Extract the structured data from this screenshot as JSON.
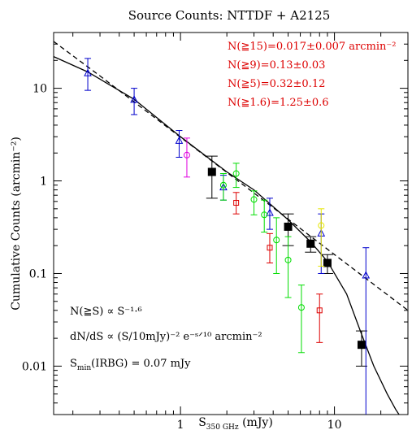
{
  "chart_data": {
    "type": "scatter",
    "title": "Source Counts: NTTDF + A2125",
    "xlabel_main": "S",
    "xlabel_sub": "350 GHz",
    "xlabel_unit": " (mJy)",
    "ylabel": "Cumulative Counts (arcmin⁻²)",
    "xscale": "log",
    "yscale": "log",
    "xlim": [
      0.15,
      30
    ],
    "ylim": [
      0.003,
      40
    ],
    "x_ticks": [
      {
        "value": 1,
        "label": "1"
      },
      {
        "value": 10,
        "label": "10"
      }
    ],
    "y_ticks": [
      {
        "value": 0.01,
        "label": "0.01"
      },
      {
        "value": 0.1,
        "label": "0.1"
      },
      {
        "value": 1,
        "label": "1"
      },
      {
        "value": 10,
        "label": "10"
      }
    ],
    "annotations_red": [
      "N(≧15)=0.017±0.007 arcmin⁻²",
      "N(≧9)=0.13±0.03",
      "N(≧5)=0.32±0.12",
      "N(≧1.6)=1.25±0.6"
    ],
    "annotations_black": [
      "N(≧S) ∝ S⁻¹·⁶",
      "dN/dS ∝ (S/10mJy)⁻² e⁻ˢᐟ¹⁰ arcmin⁻²",
      "S_min(IRBG) = 0.07 mJy"
    ],
    "smin_main": "S",
    "smin_sub": "min",
    "smin_rest": "(IRBG) = 0.07 mJy",
    "colors": {
      "black": "#000000",
      "blue": "#0000cc",
      "magenta": "#e000e0",
      "green": "#00dd00",
      "red": "#dd0000",
      "yellow": "#e6e600",
      "annotation": "#dd0000"
    },
    "series": [
      {
        "color": "black",
        "marker": "square-filled",
        "points": [
          {
            "x": 1.6,
            "y": 1.25,
            "ylo": 0.65,
            "yhi": 1.85
          },
          {
            "x": 5.0,
            "y": 0.32,
            "ylo": 0.2,
            "yhi": 0.44
          },
          {
            "x": 7.0,
            "y": 0.21,
            "ylo": 0.17,
            "yhi": 0.25
          },
          {
            "x": 9.0,
            "y": 0.13,
            "ylo": 0.1,
            "yhi": 0.16
          },
          {
            "x": 15.0,
            "y": 0.017,
            "ylo": 0.01,
            "yhi": 0.024
          }
        ]
      },
      {
        "color": "blue",
        "marker": "triangle",
        "points": [
          {
            "x": 0.25,
            "y": 14.5,
            "ylo": 9.5,
            "yhi": 21
          },
          {
            "x": 0.5,
            "y": 7.5,
            "ylo": 5.2,
            "yhi": 10
          },
          {
            "x": 0.98,
            "y": 2.7,
            "ylo": 1.8,
            "yhi": 3.5
          },
          {
            "x": 1.9,
            "y": 0.85,
            "ylo": 0.62,
            "yhi": 1.15
          },
          {
            "x": 3.8,
            "y": 0.45,
            "ylo": 0.3,
            "yhi": 0.65
          },
          {
            "x": 8.2,
            "y": 0.27,
            "ylo": 0.1,
            "yhi": 0.44
          },
          {
            "x": 16.0,
            "y": 0.095,
            "ylo": 0.003,
            "yhi": 0.19
          }
        ]
      },
      {
        "color": "magenta",
        "marker": "circle",
        "points": [
          {
            "x": 1.1,
            "y": 1.9,
            "ylo": 1.1,
            "yhi": 2.9
          }
        ]
      },
      {
        "color": "green",
        "marker": "circle",
        "points": [
          {
            "x": 1.9,
            "y": 0.9,
            "ylo": 0.62,
            "yhi": 1.2
          },
          {
            "x": 2.3,
            "y": 1.2,
            "ylo": 0.85,
            "yhi": 1.55
          },
          {
            "x": 3.0,
            "y": 0.63,
            "ylo": 0.43,
            "yhi": 0.78
          },
          {
            "x": 3.5,
            "y": 0.43,
            "ylo": 0.28,
            "yhi": 0.62
          },
          {
            "x": 4.2,
            "y": 0.23,
            "ylo": 0.1,
            "yhi": 0.4
          },
          {
            "x": 5.0,
            "y": 0.14,
            "ylo": 0.055,
            "yhi": 0.25
          },
          {
            "x": 6.1,
            "y": 0.043,
            "ylo": 0.014,
            "yhi": 0.075
          }
        ]
      },
      {
        "color": "red",
        "marker": "square-open",
        "points": [
          {
            "x": 2.3,
            "y": 0.58,
            "ylo": 0.44,
            "yhi": 0.75
          },
          {
            "x": 3.8,
            "y": 0.19,
            "ylo": 0.13,
            "yhi": 0.27
          },
          {
            "x": 8.0,
            "y": 0.04,
            "ylo": 0.018,
            "yhi": 0.06
          }
        ]
      },
      {
        "color": "yellow",
        "marker": "circle",
        "points": [
          {
            "x": 8.2,
            "y": 0.33,
            "ylo": 0.12,
            "yhi": 0.5
          }
        ]
      }
    ],
    "curves": [
      {
        "name": "power law",
        "style": "dashed",
        "points": [
          [
            0.15,
            32
          ],
          [
            0.3,
            13.6
          ],
          [
            1,
            2.96
          ],
          [
            3,
            0.74
          ],
          [
            10,
            0.16
          ],
          [
            30,
            0.04
          ]
        ]
      },
      {
        "name": "model",
        "style": "solid",
        "points": [
          [
            0.15,
            22
          ],
          [
            0.25,
            15
          ],
          [
            0.5,
            7.6
          ],
          [
            1,
            3.0
          ],
          [
            2,
            1.25
          ],
          [
            3,
            0.8
          ],
          [
            5,
            0.38
          ],
          [
            7,
            0.22
          ],
          [
            9,
            0.135
          ],
          [
            12,
            0.06
          ],
          [
            15,
            0.022
          ],
          [
            18,
            0.01
          ],
          [
            22,
            0.005
          ],
          [
            25,
            0.0034
          ],
          [
            27,
            0.0028
          ]
        ]
      }
    ]
  }
}
